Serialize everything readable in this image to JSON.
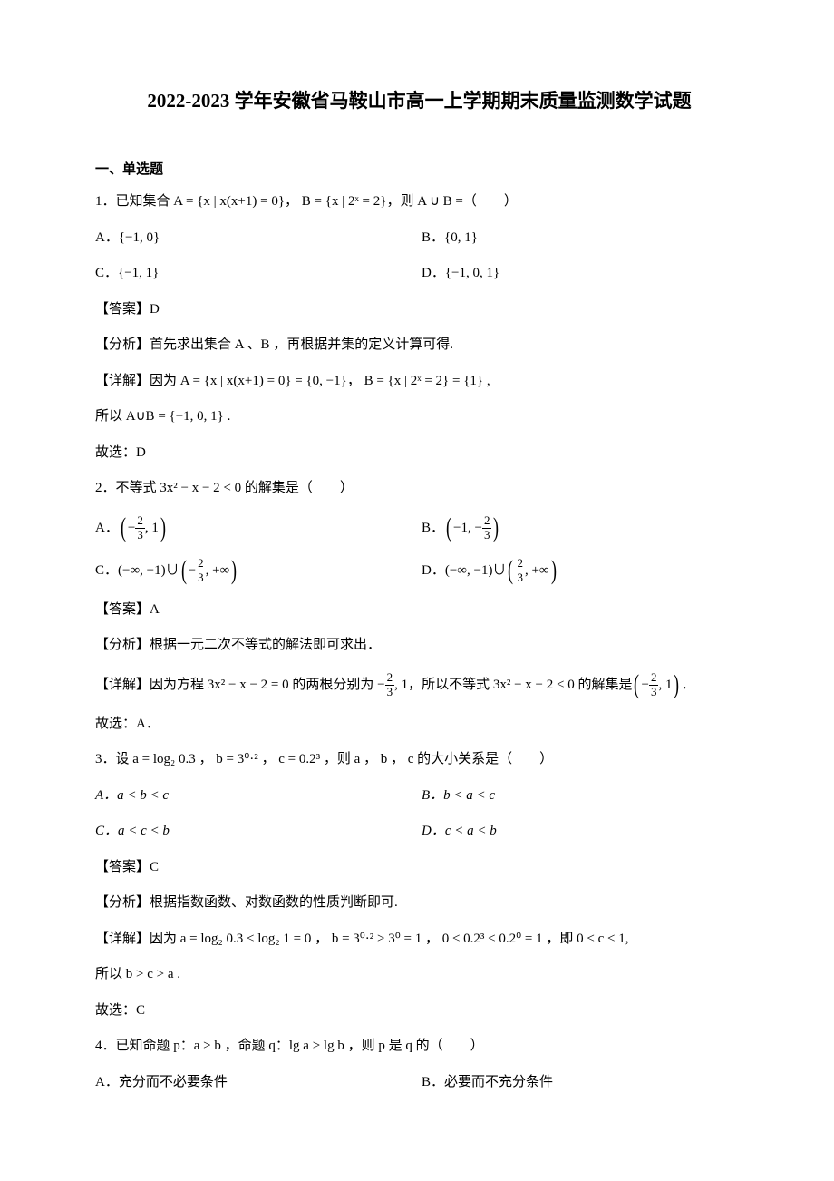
{
  "title": "2022-2023 学年安徽省马鞍山市高一上学期期末质量监测数学试题",
  "sectionHeader": "一、单选题",
  "q1": {
    "stem": "1．已知集合 A = {x | x(x+1) = 0}， B = {x | 2ˣ = 2}，则 A ∪ B =（　　）",
    "optA": "A．{−1, 0}",
    "optB": "B．{0, 1}",
    "optC": "C．{−1, 1}",
    "optD": "D．{−1, 0, 1}",
    "answer": "【答案】D",
    "analysis": "【分析】首先求出集合 A 、B ，再根据并集的定义计算可得.",
    "detail": "【详解】因为 A = {x | x(x+1) = 0} = {0, −1}， B = {x | 2ˣ = 2} = {1} ,",
    "so": "所以 A∪B = {−1, 0, 1} .",
    "choice": "故选：D"
  },
  "q2": {
    "stem": "2．不等式 3x² − x − 2 < 0 的解集是（　　）",
    "optA_pre": "A．",
    "optB_pre": "B．",
    "optC_pre": "C．(−∞, −1)∪",
    "optD_pre": "D．(−∞, −1)∪",
    "answer": "【答案】A",
    "analysis": "【分析】根据一元二次不等式的解法即可求出．",
    "detail_pre": "【详解】因为方程 3x² − x − 2 = 0 的两根分别为 −",
    "detail_mid": ", 1，所以不等式 3x² − x − 2 < 0 的解集是",
    "detail_end": "．",
    "choice": "故选：A．"
  },
  "q3": {
    "stem": "3．设 a = log₂ 0.3 ， b = 3⁰·² ， c = 0.2³ ，则 a ， b ， c 的大小关系是（　　）",
    "optA": "A．a < b < c",
    "optB": "B．b < a < c",
    "optC": "C．a < c < b",
    "optD": "D．c < a < b",
    "answer": "【答案】C",
    "analysis": "【分析】根据指数函数、对数函数的性质判断即可.",
    "detail": "【详解】因为 a = log₂ 0.3 < log₂ 1 = 0 ， b = 3⁰·² > 3⁰ = 1 ， 0 < 0.2³ < 0.2⁰ = 1 ，即 0 < c < 1,",
    "so": "所以 b > c > a .",
    "choice": "故选：C"
  },
  "q4": {
    "stem": "4．已知命题 p：a > b  ，命题 q：lg a > lg b ，则 p 是 q 的（　　）",
    "optA": "A．充分而不必要条件",
    "optB": "B．必要而不充分条件"
  },
  "frac": {
    "two": "2",
    "three": "3"
  }
}
